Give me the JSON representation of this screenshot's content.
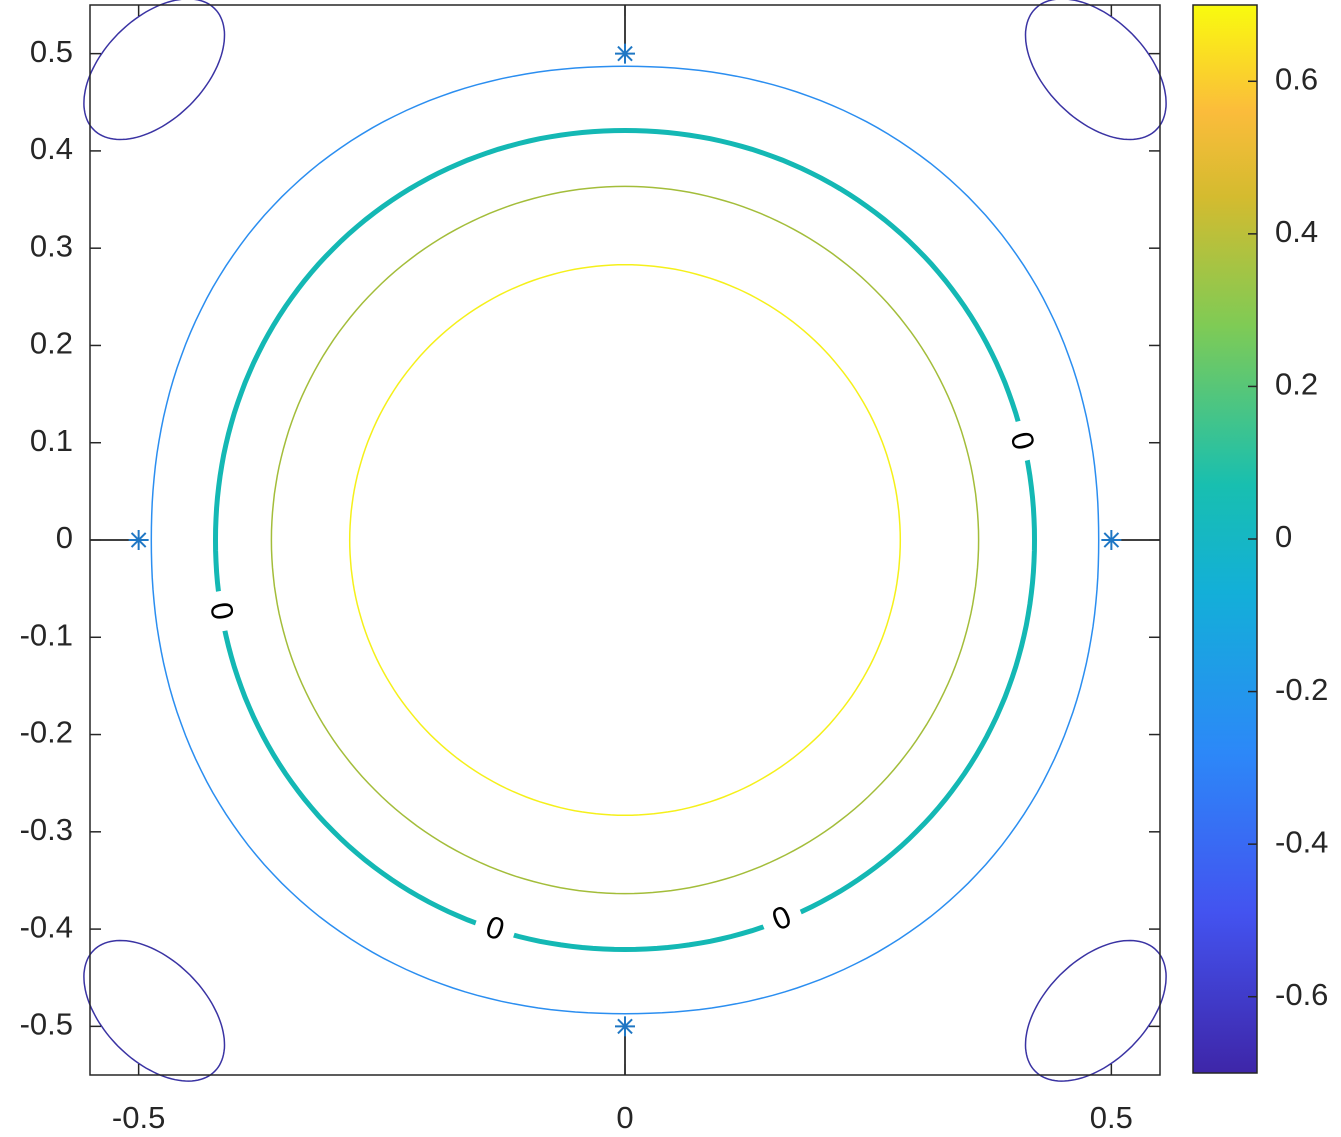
{
  "chart_data": {
    "type": "contour",
    "xlim": [
      -0.55,
      0.55
    ],
    "ylim": [
      -0.55,
      0.55
    ],
    "xticks": [
      -0.5,
      0,
      0.5
    ],
    "yticks": [
      -0.5,
      -0.4,
      -0.3,
      -0.2,
      -0.1,
      0,
      0.1,
      0.2,
      0.3,
      0.4,
      0.5
    ],
    "levels": [
      -0.6,
      -0.3,
      0,
      0.3,
      0.6
    ],
    "level_colors": [
      "#3a33a3",
      "#2b8ef0",
      "#14b8b4",
      "#a3bd3a",
      "#f5f01a"
    ],
    "points": {
      "x": [
        -0.5,
        0.5,
        0,
        0
      ],
      "y": [
        0,
        0,
        0.5,
        -0.5
      ],
      "color": "#1f77c4"
    },
    "clim": [
      -0.7,
      0.7
    ],
    "cticks": [
      -0.6,
      -0.4,
      -0.2,
      0,
      0.2,
      0.4,
      0.6
    ]
  }
}
